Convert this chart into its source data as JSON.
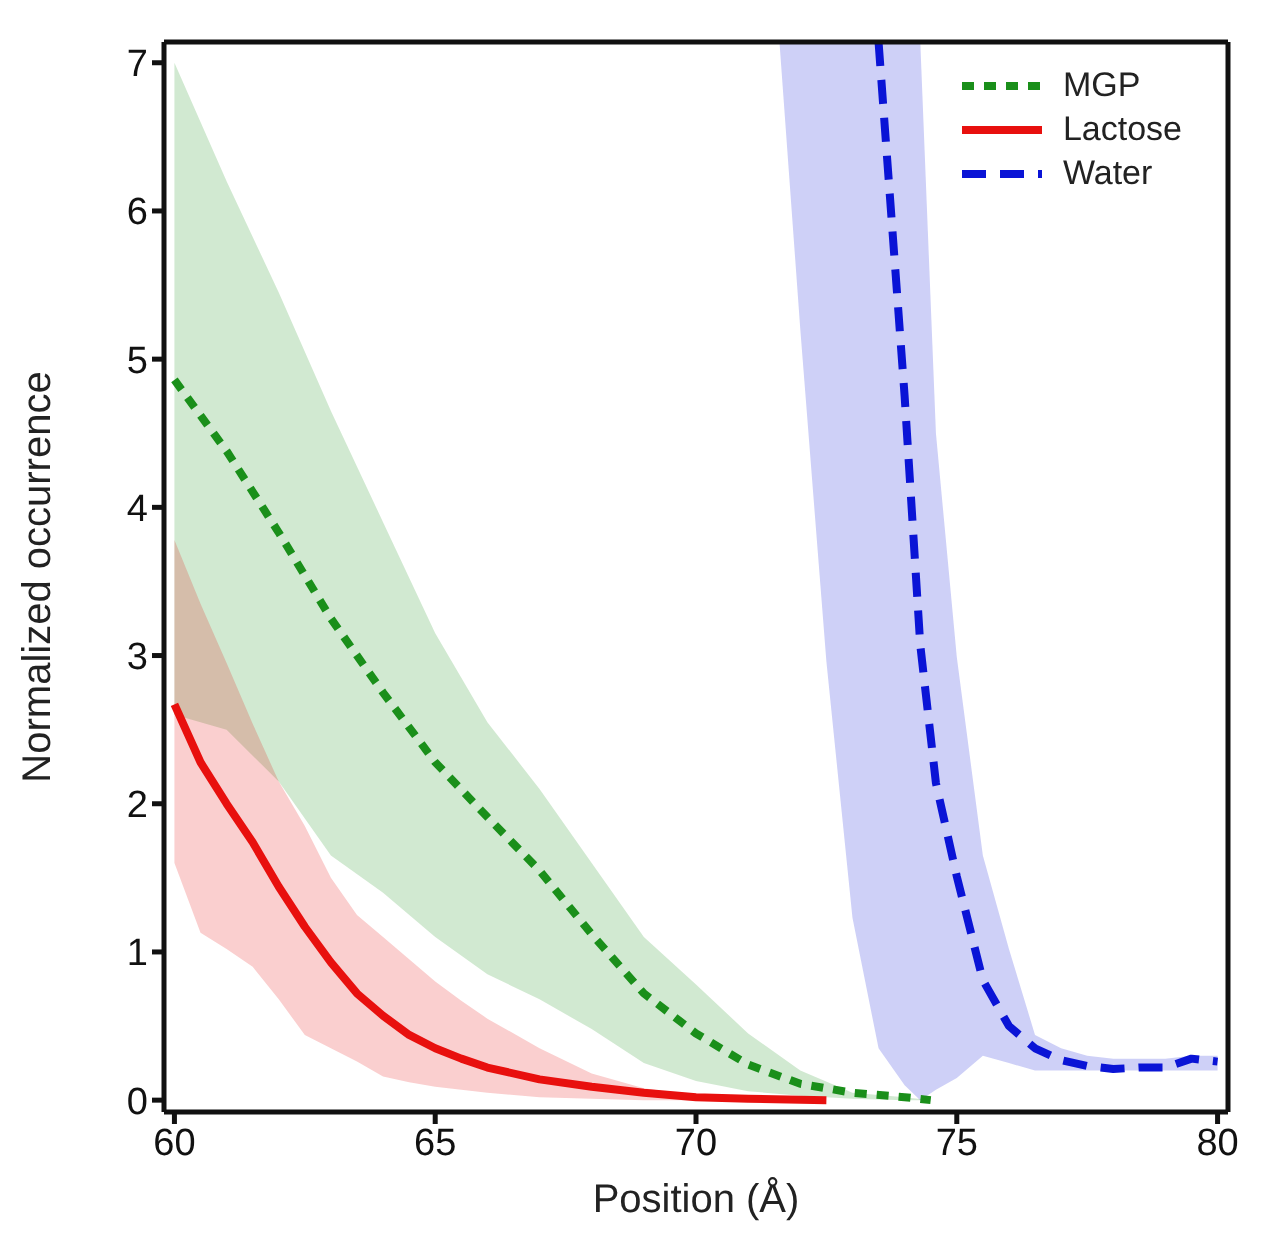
{
  "chart_data": {
    "type": "line",
    "xlabel": "Position (Å)",
    "ylabel": "Normalized occurrence",
    "xlim": [
      59.8,
      80.2
    ],
    "ylim": [
      -0.08,
      7.14
    ],
    "xticks": [
      60,
      65,
      70,
      75,
      80
    ],
    "yticks": [
      0,
      1,
      2,
      3,
      4,
      5,
      6,
      7
    ],
    "legend": "top right",
    "marker": "none",
    "series": [
      {
        "name": "MGP",
        "color": "#1a8f1a",
        "line_style": "dotted",
        "x": [
          60,
          61,
          62,
          63,
          64,
          65,
          66,
          67,
          68,
          69,
          70,
          71,
          72,
          73,
          74,
          74.5
        ],
        "values": [
          4.86,
          4.38,
          3.83,
          3.25,
          2.75,
          2.28,
          1.91,
          1.55,
          1.12,
          0.72,
          0.45,
          0.24,
          0.11,
          0.05,
          0.02,
          0
        ],
        "upper": [
          7.0,
          6.2,
          5.45,
          4.65,
          3.9,
          3.15,
          2.55,
          2.1,
          1.6,
          1.1,
          0.78,
          0.45,
          0.2,
          0.05,
          0.02,
          0
        ],
        "lower": [
          2.6,
          2.5,
          2.15,
          1.65,
          1.4,
          1.1,
          0.85,
          0.68,
          0.48,
          0.25,
          0.13,
          0.06,
          0.03,
          0.01,
          0,
          0
        ]
      },
      {
        "name": "Lactose",
        "color": "#e8100e",
        "line_style": "solid",
        "x": [
          60,
          60.5,
          61,
          61.5,
          62,
          62.5,
          63,
          63.5,
          64,
          64.5,
          65,
          65.5,
          66,
          67,
          68,
          69,
          70,
          71,
          72.5
        ],
        "values": [
          2.67,
          2.28,
          2.0,
          1.74,
          1.44,
          1.17,
          0.93,
          0.72,
          0.57,
          0.44,
          0.35,
          0.28,
          0.22,
          0.14,
          0.09,
          0.05,
          0.02,
          0.01,
          0
        ],
        "upper": [
          3.78,
          3.35,
          2.95,
          2.54,
          2.15,
          1.85,
          1.5,
          1.25,
          1.1,
          0.95,
          0.8,
          0.67,
          0.55,
          0.35,
          0.18,
          0.08,
          0.03,
          0.01,
          0
        ],
        "lower": [
          1.6,
          1.13,
          1.02,
          0.9,
          0.68,
          0.44,
          0.35,
          0.26,
          0.16,
          0.12,
          0.09,
          0.07,
          0.05,
          0.02,
          0.01,
          0,
          0,
          0,
          0
        ]
      },
      {
        "name": "Water",
        "color": "#0a14d6",
        "line_style": "dashed",
        "x": [
          71.6,
          72,
          72.5,
          73,
          73.5,
          74,
          74.3,
          74.6,
          75,
          75.5,
          76,
          76.5,
          77,
          77.5,
          78,
          78.5,
          79,
          79.5,
          80
        ],
        "values": [
          null,
          null,
          null,
          null,
          7.14,
          4.75,
          3.07,
          2.14,
          1.51,
          0.81,
          0.5,
          0.35,
          0.27,
          0.23,
          0.21,
          0.22,
          0.22,
          0.28,
          0.26
        ],
        "upper": [
          7.14,
          7.14,
          7.14,
          7.14,
          7.14,
          7.14,
          7.14,
          4.5,
          2.99,
          1.65,
          1.02,
          0.44,
          0.35,
          0.3,
          0.28,
          0.28,
          0.28,
          0.3,
          0.3
        ],
        "lower": [
          7.14,
          5.2,
          2.96,
          1.23,
          0.35,
          0.1,
          0,
          0.07,
          0.15,
          0.3,
          0.25,
          0.2,
          0.2,
          0.2,
          0.2,
          0.2,
          0.2,
          0.2,
          0.2
        ]
      }
    ]
  }
}
